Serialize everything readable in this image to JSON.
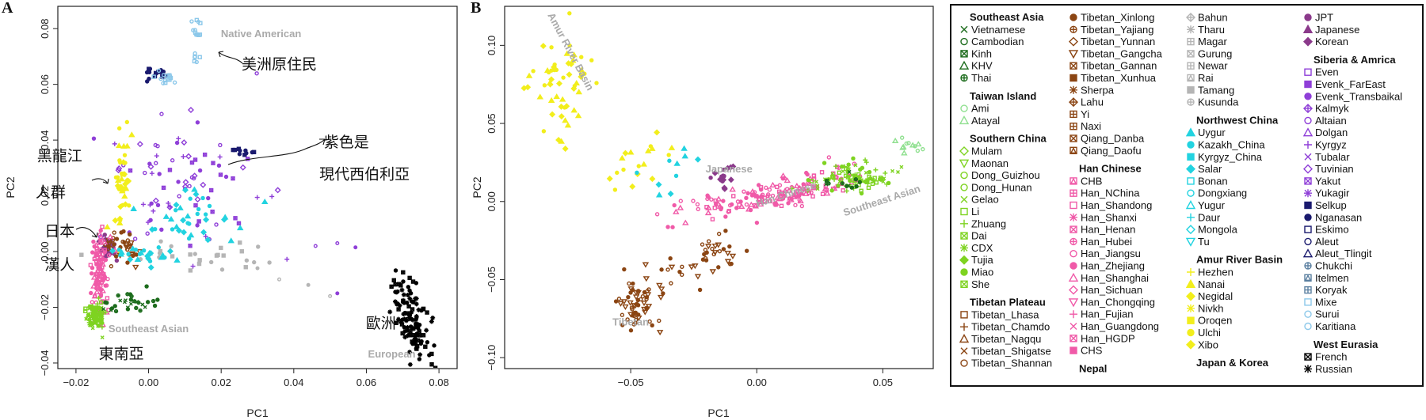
{
  "colors": {
    "southeast_asia": "#1b6b1b",
    "taiwan": "#90e090",
    "southern_china": "#7ed321",
    "tibetan": "#8b4513",
    "han": "#f05aa8",
    "nepal": "#b5b5b5",
    "northwest_china": "#22d3e0",
    "amur": "#f2ee1c",
    "japan_korea": "#8b3a8b",
    "siberia": "#8f3fd8",
    "siberia_dark": "#1a1a6e",
    "native_american": "#8cc8ea",
    "west_eurasia": "#000000",
    "label_gray": "#aaaaaa"
  },
  "chart_data": [
    {
      "type": "scatter",
      "panel": "A",
      "xlabel": "PC1",
      "ylabel": "PC2",
      "xlim": [
        -0.025,
        0.085
      ],
      "ylim": [
        -0.042,
        0.088
      ],
      "xticks": [
        -0.02,
        0.0,
        0.02,
        0.04,
        0.06,
        0.08
      ],
      "xtick_labels": [
        "−0.02",
        "0.00",
        "0.02",
        "0.04",
        "0.06",
        "0.08"
      ],
      "yticks": [
        -0.04,
        -0.02,
        0.0,
        0.02,
        0.04,
        0.06,
        0.08
      ],
      "ytick_labels": [
        "−0.04",
        "−0.02",
        "0.00",
        "0.02",
        "0.04",
        "0.06",
        "0.08"
      ],
      "region_labels": [
        {
          "text": "Native American",
          "x": 0.031,
          "y": 0.077
        },
        {
          "text": "Southeast Asian",
          "x": 0.0,
          "y": -0.029
        },
        {
          "text": "European",
          "x": 0.067,
          "y": -0.038
        }
      ],
      "annotations": [
        {
          "text": "美洲原住民",
          "x": 0.036,
          "y": 0.0655
        },
        {
          "text": "紫色是",
          "x": 0.0545,
          "y": 0.0375
        },
        {
          "text": "現代西伯利亞",
          "x": 0.0595,
          "y": 0.026
        },
        {
          "text": "黑龍江",
          "x": -0.0245,
          "y": 0.0325
        },
        {
          "text": "人群",
          "x": -0.027,
          "y": 0.0195
        },
        {
          "text": "日本",
          "x": -0.0245,
          "y": 0.0055
        },
        {
          "text": "漢人",
          "x": -0.0245,
          "y": -0.0065
        },
        {
          "text": "歐洲",
          "x": 0.064,
          "y": -0.0275
        },
        {
          "text": "東南亞",
          "x": -0.0075,
          "y": -0.0385
        }
      ],
      "clusters": [
        {
          "group": "west_eurasia",
          "n": 120,
          "cx": 0.0725,
          "cy": -0.0245,
          "sx": 0.003,
          "sy": 0.006,
          "tilt": -1.6
        },
        {
          "group": "native_american",
          "n": 12,
          "cx": 0.0135,
          "cy": 0.0785,
          "sx": 0.0007,
          "sy": 0.002
        },
        {
          "group": "native_american",
          "n": 6,
          "cx": 0.0135,
          "cy": 0.0695,
          "sx": 0.0007,
          "sy": 0.0012
        },
        {
          "group": "siberia_dark",
          "n": 16,
          "cx": 0.0015,
          "cy": 0.0635,
          "sx": 0.0025,
          "sy": 0.0012
        },
        {
          "group": "native_american",
          "n": 14,
          "cx": 0.004,
          "cy": 0.0625,
          "sx": 0.0015,
          "sy": 0.0012
        },
        {
          "group": "siberia_dark",
          "n": 10,
          "cx": 0.026,
          "cy": 0.0355,
          "sx": 0.003,
          "sy": 0.0015
        },
        {
          "group": "siberia",
          "n": 85,
          "cx": 0.01,
          "cy": 0.024,
          "sx": 0.011,
          "sy": 0.014
        },
        {
          "group": "northwest_china",
          "n": 35,
          "cx": 0.012,
          "cy": 0.012,
          "sx": 0.007,
          "sy": 0.006
        },
        {
          "group": "nepal",
          "n": 28,
          "cx": 0.013,
          "cy": -0.002,
          "sx": 0.012,
          "sy": 0.003
        },
        {
          "group": "amur",
          "n": 40,
          "cx": -0.0075,
          "cy": 0.025,
          "sx": 0.0012,
          "sy": 0.009
        },
        {
          "group": "japan_korea",
          "n": 22,
          "cx": -0.0115,
          "cy": 0.0015,
          "sx": 0.0012,
          "sy": 0.002
        },
        {
          "group": "tibetan",
          "n": 35,
          "cx": -0.007,
          "cy": 0.002,
          "sx": 0.003,
          "sy": 0.003
        },
        {
          "group": "han",
          "n": 110,
          "cx": -0.0135,
          "cy": -0.009,
          "sx": 0.0012,
          "sy": 0.0075
        },
        {
          "group": "northwest_china",
          "n": 25,
          "cx": -0.002,
          "cy": -0.0015,
          "sx": 0.004,
          "sy": 0.002
        },
        {
          "group": "southern_china",
          "n": 80,
          "cx": -0.0148,
          "cy": -0.0225,
          "sx": 0.0012,
          "sy": 0.0025
        },
        {
          "group": "southeast_asia",
          "n": 30,
          "cx": -0.006,
          "cy": -0.019,
          "sx": 0.0045,
          "sy": 0.002
        }
      ]
    },
    {
      "type": "scatter",
      "panel": "B",
      "xlabel": "PC1",
      "ylabel": "PC2",
      "xlim": [
        -0.1,
        0.07
      ],
      "ylim": [
        -0.107,
        0.125
      ],
      "xticks": [
        -0.05,
        0.0,
        0.05
      ],
      "xtick_labels": [
        "−0.05",
        "0.00",
        "0.05"
      ],
      "yticks": [
        -0.1,
        -0.05,
        0.0,
        0.05,
        0.1
      ],
      "ytick_labels": [
        "−0.10",
        "−0.05",
        "0.00",
        "0.05",
        "0.10"
      ],
      "region_labels": [
        {
          "text": "Amur River Basin",
          "x": -0.075,
          "y": 0.095,
          "rotate": 62
        },
        {
          "text": "Japanese",
          "x": -0.011,
          "y": 0.0185
        },
        {
          "text": "Han Chinese",
          "x": 0.012,
          "y": 0.0025,
          "rotate": -18
        },
        {
          "text": "Southeast Asian",
          "x": 0.05,
          "y": -0.0015,
          "rotate": -18
        },
        {
          "text": "Tibetan",
          "x": -0.05,
          "y": -0.0795
        }
      ],
      "clusters": [
        {
          "group": "amur",
          "n": 55,
          "cx": -0.077,
          "cy": 0.078,
          "sx": 0.0065,
          "sy": 0.017
        },
        {
          "group": "amur",
          "n": 18,
          "cx": -0.043,
          "cy": 0.028,
          "sx": 0.008,
          "sy": 0.01
        },
        {
          "group": "northwest_china",
          "n": 10,
          "cx": -0.035,
          "cy": 0.022,
          "sx": 0.006,
          "sy": 0.007
        },
        {
          "group": "japan_korea",
          "n": 18,
          "cx": -0.0135,
          "cy": 0.0165,
          "sx": 0.002,
          "sy": 0.0045
        },
        {
          "group": "han",
          "n": 170,
          "cx": 0.006,
          "cy": 0.004,
          "sx": 0.017,
          "sy": 0.005,
          "tilt": 0.32
        },
        {
          "group": "southern_china",
          "n": 90,
          "cx": 0.038,
          "cy": 0.014,
          "sx": 0.008,
          "sy": 0.005
        },
        {
          "group": "southeast_asia",
          "n": 12,
          "cx": 0.036,
          "cy": 0.012,
          "sx": 0.004,
          "sy": 0.003
        },
        {
          "group": "taiwan",
          "n": 12,
          "cx": 0.06,
          "cy": 0.036,
          "sx": 0.0035,
          "sy": 0.003
        },
        {
          "group": "tibetan",
          "n": 28,
          "cx": -0.0165,
          "cy": -0.032,
          "sx": 0.004,
          "sy": 0.006
        },
        {
          "group": "tibetan",
          "n": 60,
          "cx": -0.047,
          "cy": -0.066,
          "sx": 0.0045,
          "sy": 0.009
        },
        {
          "group": "tibetan",
          "n": 14,
          "cx": -0.032,
          "cy": -0.047,
          "sx": 0.006,
          "sy": 0.006
        }
      ]
    }
  ],
  "legend": {
    "columns": [
      [
        {
          "header": "Southeast Asia",
          "group": "southeast_asia",
          "items": [
            {
              "label": "Vietnamese",
              "sym": "x"
            },
            {
              "label": "Cambodian",
              "sym": "circle"
            },
            {
              "label": "Kinh",
              "sym": "boxx"
            },
            {
              "label": "KHV",
              "sym": "tri"
            },
            {
              "label": "Thai",
              "sym": "circleplus"
            }
          ]
        },
        {
          "header": "Taiwan Island",
          "group": "taiwan",
          "items": [
            {
              "label": "Ami",
              "sym": "circle"
            },
            {
              "label": "Atayal",
              "sym": "tri"
            }
          ]
        },
        {
          "header": "Southern China",
          "group": "southern_china",
          "items": [
            {
              "label": "Mulam",
              "sym": "diamond"
            },
            {
              "label": "Maonan",
              "sym": "tridown"
            },
            {
              "label": "Dong_Guizhou",
              "sym": "circle"
            },
            {
              "label": "Dong_Hunan",
              "sym": "circle"
            },
            {
              "label": "Gelao",
              "sym": "x"
            },
            {
              "label": "Li",
              "sym": "square"
            },
            {
              "label": "Zhuang",
              "sym": "plus"
            },
            {
              "label": "Dai",
              "sym": "boxx"
            },
            {
              "label": "CDX",
              "sym": "star"
            },
            {
              "label": "Tujia",
              "sym": "diamondfill"
            },
            {
              "label": "Miao",
              "sym": "circlefill"
            },
            {
              "label": "She",
              "sym": "boxx"
            }
          ]
        },
        {
          "header": "Tibetan Plateau",
          "group": "tibetan",
          "items": [
            {
              "label": "Tibetan_Lhasa",
              "sym": "square"
            },
            {
              "label": "Tibetan_Chamdo",
              "sym": "plus"
            },
            {
              "label": "Tibetan_Nagqu",
              "sym": "tri"
            },
            {
              "label": "Tibetan_Shigatse",
              "sym": "x"
            },
            {
              "label": "Tibetan_Shannan",
              "sym": "circle"
            }
          ]
        }
      ],
      [
        {
          "header": "",
          "group": "tibetan",
          "items": [
            {
              "label": "Tibetan_Xinlong",
              "sym": "circlefill"
            },
            {
              "label": "Tibetan_Yajiang",
              "sym": "circleplus"
            },
            {
              "label": "Tibetan_Yunnan",
              "sym": "diamond"
            },
            {
              "label": "Tibetan_Gangcha",
              "sym": "tridown"
            },
            {
              "label": "Tibetan_Gannan",
              "sym": "boxx"
            },
            {
              "label": "Tibetan_Xunhua",
              "sym": "squarefill"
            },
            {
              "label": "Sherpa",
              "sym": "star"
            },
            {
              "label": "Lahu",
              "sym": "diamondplus"
            },
            {
              "label": "Yi",
              "sym": "boxplus"
            },
            {
              "label": "Naxi",
              "sym": "boxplus"
            },
            {
              "label": "Qiang_Danba",
              "sym": "boxx"
            },
            {
              "label": "Qiang_Daofu",
              "sym": "boxtri"
            }
          ]
        },
        {
          "header": "Han Chinese",
          "group": "han",
          "items": [
            {
              "label": "CHB",
              "sym": "boxtri"
            },
            {
              "label": "Han_NChina",
              "sym": "boxplus"
            },
            {
              "label": "Han_Shandong",
              "sym": "square"
            },
            {
              "label": "Han_Shanxi",
              "sym": "star"
            },
            {
              "label": "Han_Henan",
              "sym": "boxx"
            },
            {
              "label": "Han_Hubei",
              "sym": "circleplus"
            },
            {
              "label": "Han_Jiangsu",
              "sym": "circle"
            },
            {
              "label": "Han_Zhejiang",
              "sym": "circlefill"
            },
            {
              "label": "Han_Shanghai",
              "sym": "tri"
            },
            {
              "label": "Han_Sichuan",
              "sym": "diamond"
            },
            {
              "label": "Han_Chongqing",
              "sym": "tridown"
            },
            {
              "label": "Han_Fujian",
              "sym": "plus"
            },
            {
              "label": "Han_Guangdong",
              "sym": "x"
            },
            {
              "label": "Han_HGDP",
              "sym": "boxx"
            },
            {
              "label": "CHS",
              "sym": "squarefill"
            }
          ]
        },
        {
          "header": "Nepal",
          "group": "nepal",
          "items": []
        }
      ],
      [
        {
          "header": "",
          "group": "nepal",
          "items": [
            {
              "label": "Bahun",
              "sym": "diamondplus"
            },
            {
              "label": "Tharu",
              "sym": "star"
            },
            {
              "label": "Magar",
              "sym": "boxplus"
            },
            {
              "label": "Gurung",
              "sym": "boxx"
            },
            {
              "label": "Newar",
              "sym": "boxplus"
            },
            {
              "label": "Rai",
              "sym": "boxtri"
            },
            {
              "label": "Tamang",
              "sym": "squarefill"
            },
            {
              "label": "Kusunda",
              "sym": "circleplus"
            }
          ]
        },
        {
          "header": "Northwest China",
          "group": "northwest_china",
          "items": [
            {
              "label": "Uygur",
              "sym": "trifill"
            },
            {
              "label": "Kazakh_China",
              "sym": "circlefill"
            },
            {
              "label": "Kyrgyz_China",
              "sym": "squarefill"
            },
            {
              "label": "Salar",
              "sym": "diamondfill"
            },
            {
              "label": "Bonan",
              "sym": "square"
            },
            {
              "label": "Dongxiang",
              "sym": "circle"
            },
            {
              "label": "Yugur",
              "sym": "tri"
            },
            {
              "label": "Daur",
              "sym": "plus"
            },
            {
              "label": "Mongola",
              "sym": "diamond"
            },
            {
              "label": "Tu",
              "sym": "tridown"
            }
          ]
        },
        {
          "header": "Amur River Basin",
          "group": "amur",
          "items": [
            {
              "label": "Hezhen",
              "sym": "plus"
            },
            {
              "label": "Nanai",
              "sym": "trifill"
            },
            {
              "label": "Negidal",
              "sym": "diamondfill"
            },
            {
              "label": "Nivkh",
              "sym": "star"
            },
            {
              "label": "Oroqen",
              "sym": "squarefill"
            },
            {
              "label": "Ulchi",
              "sym": "circlefill"
            },
            {
              "label": "Xibo",
              "sym": "diamondfill"
            }
          ]
        },
        {
          "header": "Japan & Korea",
          "group": "japan_korea",
          "items": []
        }
      ],
      [
        {
          "header": "",
          "group": "japan_korea",
          "items": [
            {
              "label": "JPT",
              "sym": "circlefill"
            },
            {
              "label": "Japanese",
              "sym": "trifill"
            },
            {
              "label": "Korean",
              "sym": "diamondfill"
            }
          ]
        },
        {
          "header": "Siberia & Amrica",
          "group": "siberia",
          "items": [
            {
              "label": "Even",
              "sym": "square"
            },
            {
              "label": "Evenk_FarEast",
              "sym": "squarefill"
            },
            {
              "label": "Evenk_Transbaikal",
              "sym": "circlefill"
            },
            {
              "label": "Kalmyk",
              "sym": "diamondplus"
            },
            {
              "label": "Altaian",
              "sym": "circle"
            },
            {
              "label": "Dolgan",
              "sym": "tri"
            },
            {
              "label": "Kyrgyz",
              "sym": "plus"
            },
            {
              "label": "Tubalar",
              "sym": "x"
            },
            {
              "label": "Tuvinian",
              "sym": "diamond"
            },
            {
              "label": "Yakut",
              "sym": "boxx"
            },
            {
              "label": "Yukagir",
              "sym": "star"
            },
            {
              "label": "Selkup",
              "sym": "squarefill",
              "group": "siberia_dark"
            },
            {
              "label": "Nganasan",
              "sym": "circlefill",
              "group": "siberia_dark"
            },
            {
              "label": "Eskimo",
              "sym": "square",
              "group": "siberia_dark"
            },
            {
              "label": "Aleut",
              "sym": "circle",
              "group": "siberia_dark"
            },
            {
              "label": "Aleut_Tlingit",
              "sym": "tri",
              "group": "siberia_dark"
            },
            {
              "label": "Chukchi",
              "sym": "circleplus",
              "group": "chukchi"
            },
            {
              "label": "Itelmen",
              "sym": "boxtri",
              "group": "chukchi"
            },
            {
              "label": "Koryak",
              "sym": "boxplus",
              "group": "chukchi"
            },
            {
              "label": "Mixe",
              "sym": "square",
              "group": "native_american"
            },
            {
              "label": "Surui",
              "sym": "circle",
              "group": "native_american"
            },
            {
              "label": "Karitiana",
              "sym": "circle",
              "group": "native_american"
            }
          ]
        },
        {
          "header": "West Eurasia",
          "group": "west_eurasia",
          "items": [
            {
              "label": "French",
              "sym": "boxx"
            },
            {
              "label": "Russian",
              "sym": "star"
            }
          ]
        }
      ]
    ]
  }
}
